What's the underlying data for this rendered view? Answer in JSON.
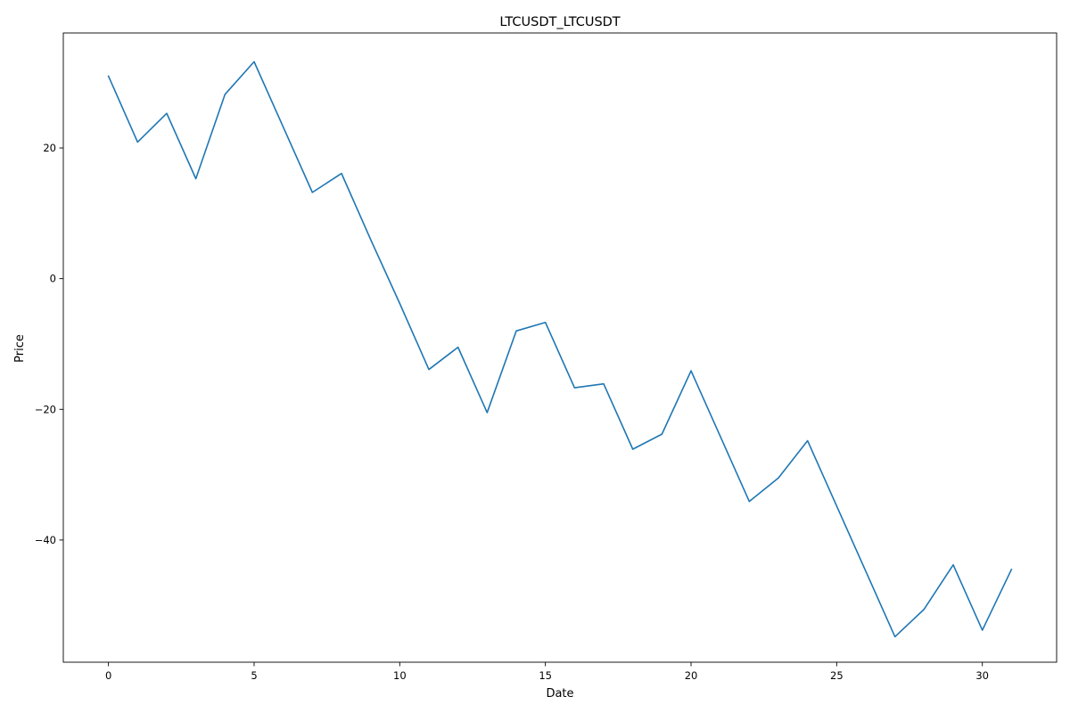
{
  "chart_data": {
    "type": "line",
    "title": "LTCUSDT_LTCUSDT",
    "xlabel": "Date",
    "ylabel": "Price",
    "xlim": [
      -1.55,
      32.55
    ],
    "ylim": [
      -58.7,
      37.6
    ],
    "xticks": [
      0,
      5,
      10,
      15,
      20,
      25,
      30
    ],
    "xtick_labels": [
      "0",
      "5",
      "10",
      "15",
      "20",
      "25",
      "30"
    ],
    "yticks": [
      -40,
      -20,
      0,
      20
    ],
    "ytick_labels": [
      "−40",
      "−20",
      "0",
      "20"
    ],
    "grid": false,
    "legend": "none",
    "series": [
      {
        "color": "#1f77b4",
        "x": [
          0,
          1,
          2,
          3,
          4,
          5,
          6,
          7,
          8,
          9,
          10,
          11,
          12,
          13,
          14,
          15,
          16,
          17,
          18,
          19,
          20,
          21,
          22,
          23,
          24,
          25,
          26,
          27,
          28,
          29,
          30,
          31
        ],
        "values": [
          31.0,
          20.9,
          25.3,
          15.3,
          28.2,
          33.2,
          23.2,
          13.2,
          16.1,
          6.0,
          -3.8,
          -13.9,
          -10.5,
          -20.5,
          -8.0,
          -6.7,
          -16.7,
          -16.1,
          -26.1,
          -23.8,
          -14.1,
          -24.1,
          -34.1,
          -30.5,
          -24.8,
          -34.8,
          -44.8,
          -54.8,
          -50.6,
          -43.8,
          -53.8,
          -44.5
        ]
      }
    ]
  }
}
